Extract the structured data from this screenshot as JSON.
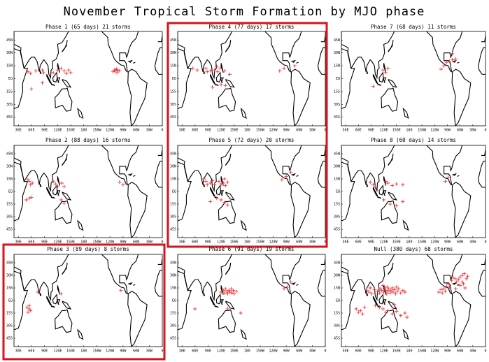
{
  "title": "November Tropical Storm Formation by MJO phase",
  "lat_ticks": [
    {
      "value": 45,
      "label": "45N"
    },
    {
      "value": 30,
      "label": "30N"
    },
    {
      "value": 15,
      "label": "15N"
    },
    {
      "value": 0,
      "label": "EQ"
    },
    {
      "value": -15,
      "label": "15S"
    },
    {
      "value": -30,
      "label": "30S"
    },
    {
      "value": -45,
      "label": "45S"
    }
  ],
  "lon_ticks": [
    {
      "value": 30,
      "label": "30E"
    },
    {
      "value": 60,
      "label": "60E"
    },
    {
      "value": 90,
      "label": "90E"
    },
    {
      "value": 120,
      "label": "120E"
    },
    {
      "value": 150,
      "label": "150E"
    },
    {
      "value": 180,
      "label": "180"
    },
    {
      "value": 210,
      "label": "150W"
    },
    {
      "value": 240,
      "label": "120W"
    },
    {
      "value": 270,
      "label": "90W"
    },
    {
      "value": 300,
      "label": "60W"
    },
    {
      "value": 330,
      "label": "30W"
    },
    {
      "value": 360,
      "label": "0"
    }
  ],
  "panels": [
    {
      "title": "Phase 1 (65 days) 21 storms",
      "storms": [
        [
          52,
          8
        ],
        [
          58,
          6
        ],
        [
          70,
          9
        ],
        [
          85,
          10
        ],
        [
          88,
          7
        ],
        [
          60,
          -12
        ],
        [
          110,
          7
        ],
        [
          120,
          10
        ],
        [
          128,
          12
        ],
        [
          135,
          9
        ],
        [
          140,
          6
        ],
        [
          145,
          10
        ],
        [
          150,
          7
        ],
        [
          247,
          8
        ],
        [
          250,
          10
        ],
        [
          252,
          9
        ],
        [
          255,
          11
        ],
        [
          258,
          10
        ],
        [
          262,
          9
        ],
        [
          256,
          7
        ],
        [
          85,
          -5
        ]
      ]
    },
    {
      "title": "Phase 4 (77 days) 17 storms",
      "storms": [
        [
          55,
          12
        ],
        [
          65,
          10
        ],
        [
          85,
          12
        ],
        [
          88,
          8
        ],
        [
          95,
          9
        ],
        [
          105,
          10
        ],
        [
          110,
          14
        ],
        [
          112,
          8
        ],
        [
          118,
          12
        ],
        [
          128,
          9
        ],
        [
          130,
          -8
        ],
        [
          120,
          -7
        ],
        [
          100,
          -10
        ],
        [
          140,
          5
        ],
        [
          255,
          9
        ],
        [
          290,
          15
        ],
        [
          265,
          12
        ]
      ]
    },
    {
      "title": "Phase 7 (68 days) 11 storms",
      "storms": [
        [
          118,
          10
        ],
        [
          125,
          7
        ],
        [
          130,
          12
        ],
        [
          95,
          -9
        ],
        [
          255,
          11
        ],
        [
          262,
          15
        ],
        [
          268,
          19
        ],
        [
          275,
          20
        ],
        [
          282,
          22
        ],
        [
          290,
          23
        ],
        [
          282,
          29
        ]
      ]
    },
    {
      "title": "Phase 2 (88 days) 16 storms",
      "storms": [
        [
          55,
          12
        ],
        [
          58,
          8
        ],
        [
          52,
          14
        ],
        [
          62,
          10
        ],
        [
          48,
          -10
        ],
        [
          55,
          -8
        ],
        [
          60,
          -7
        ],
        [
          110,
          12
        ],
        [
          115,
          9
        ],
        [
          120,
          6
        ],
        [
          130,
          10
        ],
        [
          135,
          6
        ],
        [
          128,
          -10
        ],
        [
          135,
          -14
        ],
        [
          262,
          11
        ],
        [
          270,
          8
        ]
      ]
    },
    {
      "title": "Phase 5 (72 days) 20 storms",
      "storms": [
        [
          80,
          15
        ],
        [
          85,
          12
        ],
        [
          88,
          8
        ],
        [
          95,
          10
        ],
        [
          100,
          13
        ],
        [
          105,
          8
        ],
        [
          115,
          12
        ],
        [
          120,
          9
        ],
        [
          125,
          10
        ],
        [
          128,
          15
        ],
        [
          130,
          7
        ],
        [
          135,
          11
        ],
        [
          110,
          -8
        ],
        [
          120,
          -10
        ],
        [
          128,
          -13
        ],
        [
          135,
          -16
        ],
        [
          95,
          -12
        ],
        [
          260,
          14
        ],
        [
          270,
          18
        ],
        [
          280,
          23
        ]
      ]
    },
    {
      "title": "Phase 8 (60 days) 14 storms",
      "storms": [
        [
          88,
          11
        ],
        [
          95,
          8
        ],
        [
          100,
          5
        ],
        [
          125,
          12
        ],
        [
          130,
          10
        ],
        [
          140,
          7
        ],
        [
          150,
          9
        ],
        [
          165,
          8
        ],
        [
          120,
          -10
        ],
        [
          135,
          -15
        ],
        [
          150,
          -17
        ],
        [
          165,
          -12
        ],
        [
          265,
          12
        ],
        [
          272,
          17
        ]
      ]
    },
    {
      "title": "Phase 3 (89 days) 8 storms",
      "storms": [
        [
          50,
          -8
        ],
        [
          55,
          -10
        ],
        [
          58,
          -12
        ],
        [
          52,
          -14
        ],
        [
          55,
          -6
        ],
        [
          75,
          10
        ],
        [
          128,
          8
        ],
        [
          265,
          12
        ]
      ]
    },
    {
      "title": "Phase 6 (91 days) 19 storms",
      "storms": [
        [
          120,
          10
        ],
        [
          125,
          12
        ],
        [
          128,
          9
        ],
        [
          130,
          14
        ],
        [
          133,
          11
        ],
        [
          135,
          8
        ],
        [
          138,
          12
        ],
        [
          140,
          10
        ],
        [
          143,
          14
        ],
        [
          145,
          9
        ],
        [
          148,
          12
        ],
        [
          150,
          8
        ],
        [
          155,
          11
        ],
        [
          135,
          -10
        ],
        [
          165,
          -15
        ],
        [
          60,
          -10
        ],
        [
          265,
          14
        ],
        [
          272,
          16
        ],
        [
          280,
          22
        ]
      ]
    },
    {
      "title": "Null (380 days) 68 storms",
      "storms": [
        [
          55,
          -10
        ],
        [
          60,
          -14
        ],
        [
          65,
          -12
        ],
        [
          70,
          -16
        ],
        [
          75,
          -8
        ],
        [
          80,
          12
        ],
        [
          85,
          10
        ],
        [
          88,
          15
        ],
        [
          92,
          8
        ],
        [
          98,
          13
        ],
        [
          105,
          11
        ],
        [
          110,
          9
        ],
        [
          112,
          14
        ],
        [
          115,
          12
        ],
        [
          118,
          18
        ],
        [
          120,
          10
        ],
        [
          122,
          15
        ],
        [
          125,
          12
        ],
        [
          127,
          8
        ],
        [
          128,
          16
        ],
        [
          130,
          11
        ],
        [
          132,
          14
        ],
        [
          135,
          9
        ],
        [
          137,
          12
        ],
        [
          140,
          15
        ],
        [
          142,
          10
        ],
        [
          145,
          13
        ],
        [
          148,
          8
        ],
        [
          150,
          16
        ],
        [
          152,
          11
        ],
        [
          155,
          14
        ],
        [
          160,
          9
        ],
        [
          165,
          12
        ],
        [
          170,
          10
        ],
        [
          110,
          -8
        ],
        [
          118,
          -10
        ],
        [
          125,
          -14
        ],
        [
          130,
          -12
        ],
        [
          140,
          -16
        ],
        [
          150,
          -13
        ],
        [
          160,
          -18
        ],
        [
          170,
          -15
        ],
        [
          175,
          -20
        ],
        [
          145,
          -5
        ],
        [
          100,
          -6
        ],
        [
          250,
          10
        ],
        [
          255,
          13
        ],
        [
          258,
          9
        ],
        [
          262,
          14
        ],
        [
          265,
          11
        ],
        [
          268,
          17
        ],
        [
          272,
          20
        ],
        [
          275,
          16
        ],
        [
          280,
          24
        ],
        [
          283,
          28
        ],
        [
          288,
          26
        ],
        [
          292,
          22
        ],
        [
          296,
          25
        ],
        [
          300,
          28
        ],
        [
          305,
          30
        ],
        [
          310,
          32
        ],
        [
          315,
          26
        ],
        [
          318,
          29
        ],
        [
          300,
          18
        ],
        [
          308,
          20
        ],
        [
          312,
          15
        ],
        [
          290,
          14
        ],
        [
          305,
          22
        ]
      ]
    }
  ]
}
